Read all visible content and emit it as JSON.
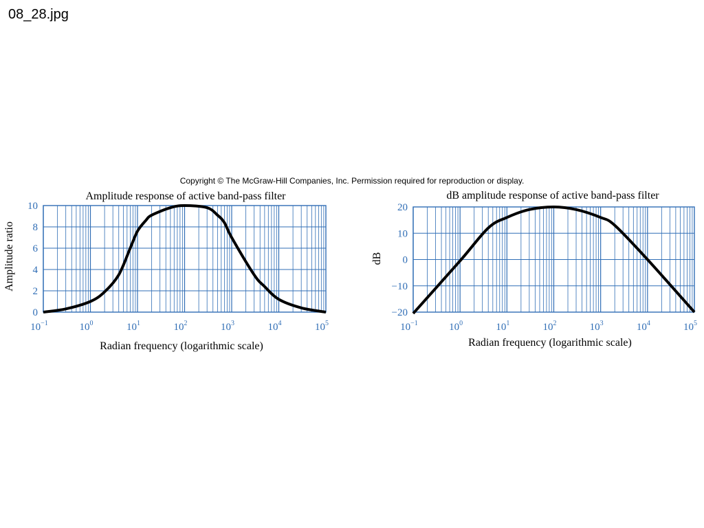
{
  "filename": "08_28.jpg",
  "copyright": "Copyright © The McGraw-Hill Companies, Inc. Permission required for reproduction or display.",
  "colors": {
    "grid": "#2f6db5",
    "curve": "#000000",
    "tick_text": "#2f6db5"
  },
  "chart_data": [
    {
      "type": "line",
      "title": "Amplitude response of active band-pass filter",
      "xlabel": "Radian frequency (logarithmic scale)",
      "ylabel": "Amplitude ratio",
      "xscale": "log",
      "xlim": [
        0.1,
        100000
      ],
      "ylim": [
        0,
        10
      ],
      "xticks": [
        {
          "base": "10",
          "exp": "−1"
        },
        {
          "base": "10",
          "exp": "0"
        },
        {
          "base": "10",
          "exp": "1"
        },
        {
          "base": "10",
          "exp": "2"
        },
        {
          "base": "10",
          "exp": "3"
        },
        {
          "base": "10",
          "exp": "4"
        },
        {
          "base": "10",
          "exp": "5"
        }
      ],
      "yticks": [
        "0",
        "2",
        "4",
        "6",
        "8",
        "10"
      ],
      "grid": true,
      "x": [
        0.1,
        0.3,
        1,
        2,
        4,
        7,
        10,
        15,
        20,
        50,
        100,
        300,
        500,
        700,
        1000,
        3000,
        5000,
        10000,
        30000,
        100000
      ],
      "y": [
        0.0,
        0.3,
        1.0,
        1.9,
        3.5,
        6.0,
        7.6,
        8.6,
        9.1,
        9.8,
        10.0,
        9.8,
        9.1,
        8.4,
        7.0,
        3.5,
        2.4,
        1.2,
        0.4,
        0.0
      ]
    },
    {
      "type": "line",
      "title": "dB amplitude response of active band-pass filter",
      "xlabel": "Radian frequency (logarithmic scale)",
      "ylabel": "dB",
      "xscale": "log",
      "xlim": [
        0.1,
        100000
      ],
      "ylim": [
        -20,
        20
      ],
      "xticks": [
        {
          "base": "10",
          "exp": "−1"
        },
        {
          "base": "10",
          "exp": "0"
        },
        {
          "base": "10",
          "exp": "1"
        },
        {
          "base": "10",
          "exp": "2"
        },
        {
          "base": "10",
          "exp": "3"
        },
        {
          "base": "10",
          "exp": "4"
        },
        {
          "base": "10",
          "exp": "5"
        }
      ],
      "yticks": [
        "−20",
        "−10",
        "0",
        "10",
        "20"
      ],
      "grid": true,
      "x": [
        0.1,
        1,
        4,
        10,
        30,
        100,
        300,
        1000,
        2000,
        10000,
        100000
      ],
      "y": [
        -20.5,
        -0.5,
        12.0,
        16.0,
        19.0,
        20.0,
        19.0,
        16.0,
        13.0,
        0.0,
        -20.0
      ]
    }
  ]
}
